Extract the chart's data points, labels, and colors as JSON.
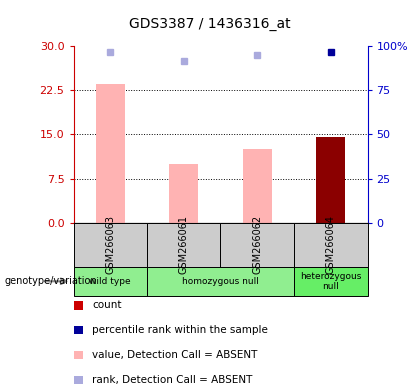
{
  "title": "GDS3387 / 1436316_at",
  "samples": [
    "GSM266063",
    "GSM266061",
    "GSM266062",
    "GSM266064"
  ],
  "bar_values_pink": [
    23.5,
    10.0,
    12.5,
    0
  ],
  "bar_values_red": [
    0,
    0,
    0,
    14.5
  ],
  "rank_squares_blue_light": [
    29.0,
    27.5,
    28.5,
    0
  ],
  "rank_squares_blue_dark": [
    0,
    0,
    0,
    29.0
  ],
  "left_ylim": [
    0,
    30
  ],
  "left_yticks": [
    0,
    7.5,
    15,
    22.5,
    30
  ],
  "right_ylim": [
    0,
    100
  ],
  "right_yticks": [
    0,
    25,
    50,
    75,
    100
  ],
  "left_tick_color": "#cc0000",
  "right_tick_color": "#0000cc",
  "bar_color_pink": "#ffb3b3",
  "bar_color_red": "#8b0000",
  "square_color_light_blue": "#aaaadd",
  "square_color_dark_blue": "#000099",
  "genotype_groups": [
    {
      "label": "wild type",
      "start": 0,
      "end": 1,
      "color": "#90ee90"
    },
    {
      "label": "homozygous null",
      "start": 1,
      "end": 3,
      "color": "#90ee90"
    },
    {
      "label": "heterozygous\nnull",
      "start": 3,
      "end": 4,
      "color": "#66ee66"
    }
  ],
  "legend_items": [
    {
      "color": "#cc0000",
      "label": "count"
    },
    {
      "color": "#000099",
      "label": "percentile rank within the sample"
    },
    {
      "color": "#ffb3b3",
      "label": "value, Detection Call = ABSENT"
    },
    {
      "color": "#aaaadd",
      "label": "rank, Detection Call = ABSENT"
    }
  ],
  "genotype_label": "genotype/variation"
}
